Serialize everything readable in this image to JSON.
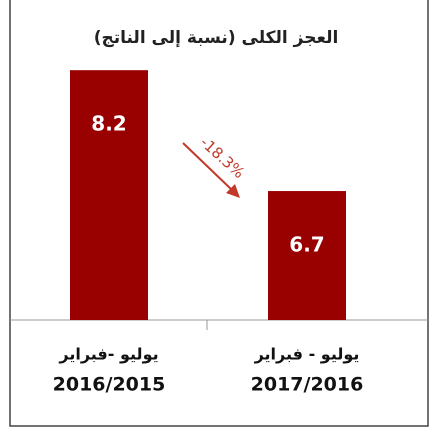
{
  "chart_data": {
    "type": "bar",
    "title": "العجز الكلى (نسبة إلى الناتج)",
    "categories": [
      [
        "يوليو -فبراير",
        "2016/2015"
      ],
      [
        "يوليو - فبراير",
        "2017/2016"
      ]
    ],
    "values": [
      8.2,
      6.7
    ],
    "color": "#990000",
    "ylim": [
      5.1,
      8.5
    ],
    "annotation": "-18.3%"
  }
}
